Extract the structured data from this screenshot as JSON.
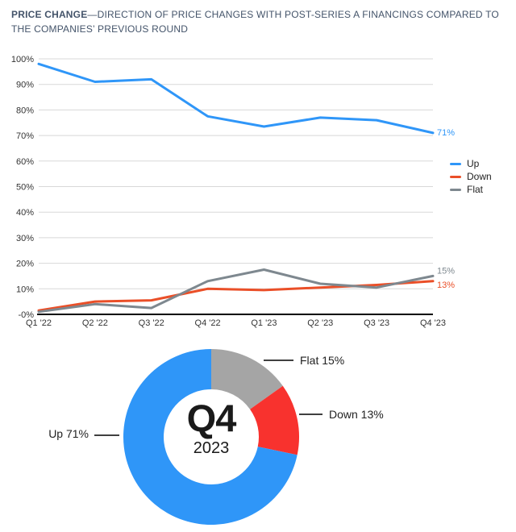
{
  "title": {
    "bold": "PRICE CHANGE",
    "rest": "—DIRECTION OF PRICE CHANGES WITH POST-SERIES A FINANCINGS COMPARED TO THE COMPANIES’ PREVIOUS ROUND"
  },
  "colors": {
    "up": "#2f96f8",
    "down_line": "#ea4f28",
    "flat_line": "#7e888f",
    "down_slice": "#f8322e",
    "flat_slice": "#a5a5a5",
    "grid": "#d8d8d8",
    "axis": "#000000",
    "tick_text": "#333333",
    "leader": "#404040"
  },
  "chart_data": [
    {
      "type": "line",
      "title": "Direction of price changes with post-Series A financings compared to the companies' previous round",
      "categories": [
        "Q1 '22",
        "Q2 '22",
        "Q3 '22",
        "Q4 '22",
        "Q1 '23",
        "Q2 '23",
        "Q3 '23",
        "Q4 '23"
      ],
      "series": [
        {
          "name": "Up",
          "color_key": "up",
          "values": [
            98,
            91,
            92,
            77.5,
            73.5,
            77,
            76,
            71
          ],
          "end_label": "71%",
          "end_label_dy": 3
        },
        {
          "name": "Down",
          "color_key": "down_line",
          "values": [
            1.5,
            5,
            5.5,
            10,
            9.5,
            10.5,
            11.5,
            13
          ],
          "end_label": "13%",
          "end_label_dy": 8
        },
        {
          "name": "Flat",
          "color_key": "flat_line",
          "values": [
            1,
            4,
            2.5,
            13,
            17.5,
            12,
            10.5,
            15
          ],
          "end_label": "15%",
          "end_label_dy": -3
        }
      ],
      "y_ticks": [
        "100%",
        "90%",
        "80%",
        "70%",
        "60%",
        "50%",
        "40%",
        "30%",
        "20%",
        "10%",
        "-0%"
      ],
      "ylim": [
        0,
        100
      ],
      "grid": true,
      "legend_position": "right"
    },
    {
      "type": "donut",
      "center_title": "Q4",
      "center_subtitle": "2023",
      "slices": [
        {
          "name": "Flat",
          "value": 15,
          "label": "Flat 15%",
          "color_key": "flat_slice"
        },
        {
          "name": "Down",
          "value": 13,
          "label": "Down 13%",
          "color_key": "down_slice"
        },
        {
          "name": "Up",
          "value": 71,
          "label": "Up 71%",
          "color_key": "up"
        }
      ],
      "start_angle_deg": 0,
      "direction": "clockwise"
    }
  ]
}
